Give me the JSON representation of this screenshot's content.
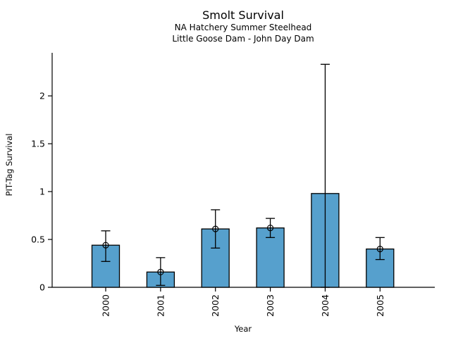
{
  "chart_data": {
    "type": "bar",
    "title": "Smolt Survival",
    "subtitle": [
      "NA Hatchery Summer Steelhead",
      "Little Goose Dam - John Day Dam"
    ],
    "xlabel": "Year",
    "ylabel": "PIT-Tag Survival",
    "categories": [
      "2000",
      "2001",
      "2002",
      "2003",
      "2004",
      "2005"
    ],
    "values": [
      0.44,
      0.16,
      0.61,
      0.62,
      0.98,
      0.4
    ],
    "error_low": [
      0.27,
      0.02,
      0.41,
      0.52,
      0.0,
      0.29
    ],
    "error_high": [
      0.59,
      0.31,
      0.81,
      0.72,
      2.33,
      0.52
    ],
    "point_marker": "open-circle",
    "point_marker_visible": [
      true,
      true,
      true,
      true,
      false,
      true
    ],
    "yticks": [
      0,
      0.5,
      1,
      1.5,
      2
    ],
    "ytick_labels": [
      "0",
      "0.5",
      "1",
      "1.5",
      "2"
    ],
    "ylim": [
      0,
      2.45
    ],
    "x_tick_label_rotation": -90,
    "grid": false,
    "legend": false,
    "background_color": "#ffffff",
    "bar_color": "#56a0cd",
    "bar_edge_color": "#000000",
    "error_bar_color": "#000000",
    "axis_color": "#000000"
  }
}
